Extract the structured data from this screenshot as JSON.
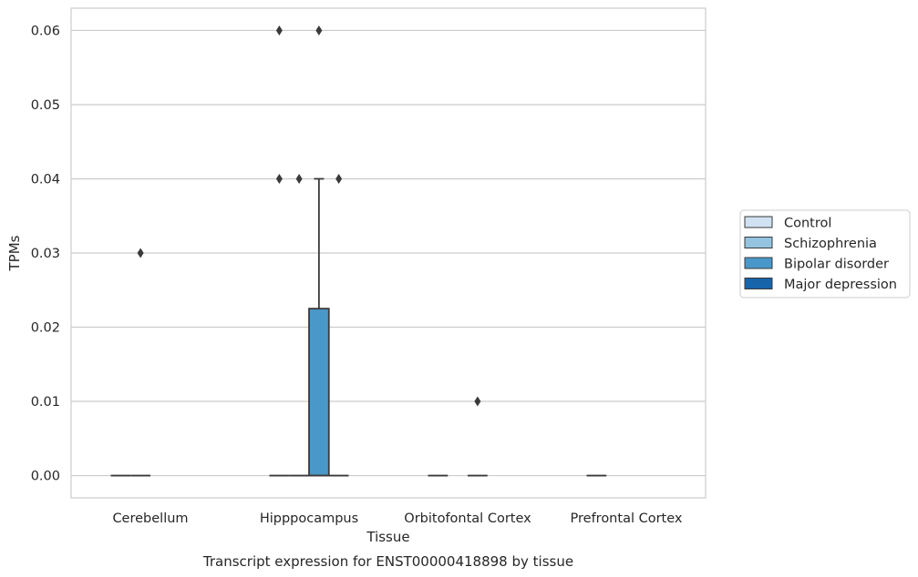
{
  "chart_data": {
    "type": "box",
    "xlabel": "Tissue",
    "ylabel": "TPMs",
    "caption": "Transcript expression for ENST00000418898 by tissue",
    "ylim": [
      -0.003,
      0.063
    ],
    "yticks": [
      "0.00",
      "0.01",
      "0.02",
      "0.03",
      "0.04",
      "0.05",
      "0.06"
    ],
    "categories": [
      "Cerebellum",
      "Hipppocampus",
      "Orbitofontal Cortex",
      "Prefrontal Cortex"
    ],
    "grid": "horizontal",
    "legend_placement": "right",
    "series": [
      {
        "name": "Control",
        "color": "#d0e1f2"
      },
      {
        "name": "Schizophrenia",
        "color": "#94c4df"
      },
      {
        "name": "Bipolar disorder",
        "color": "#4a98c9"
      },
      {
        "name": "Major depression",
        "color": "#1764ab"
      }
    ],
    "boxes": [
      {
        "category": 0,
        "series": 0,
        "q1": 0,
        "median": 0,
        "q3": 0,
        "whisker_low": 0,
        "whisker_high": 0,
        "outliers": []
      },
      {
        "category": 0,
        "series": 1,
        "q1": 0,
        "median": 0,
        "q3": 0,
        "whisker_low": 0,
        "whisker_high": 0,
        "outliers": [
          0.03
        ]
      },
      {
        "category": 1,
        "series": 0,
        "q1": 0,
        "median": 0,
        "q3": 0,
        "whisker_low": 0,
        "whisker_high": 0,
        "outliers": [
          0.04,
          0.06
        ]
      },
      {
        "category": 1,
        "series": 1,
        "q1": 0,
        "median": 0,
        "q3": 0,
        "whisker_low": 0,
        "whisker_high": 0,
        "outliers": [
          0.04
        ]
      },
      {
        "category": 1,
        "series": 2,
        "q1": 0,
        "median": 0,
        "q3": 0.0225,
        "whisker_low": 0,
        "whisker_high": 0.04,
        "outliers": [
          0.06
        ]
      },
      {
        "category": 1,
        "series": 3,
        "q1": 0,
        "median": 0,
        "q3": 0,
        "whisker_low": 0,
        "whisker_high": 0,
        "outliers": [
          0.04
        ]
      },
      {
        "category": 2,
        "series": 0,
        "q1": 0,
        "median": 0,
        "q3": 0,
        "whisker_low": 0,
        "whisker_high": 0,
        "outliers": []
      },
      {
        "category": 2,
        "series": 2,
        "q1": 0,
        "median": 0,
        "q3": 0,
        "whisker_low": 0,
        "whisker_high": 0,
        "outliers": [
          0.01
        ]
      },
      {
        "category": 3,
        "series": 0,
        "q1": 0,
        "median": 0,
        "q3": 0,
        "whisker_low": 0,
        "whisker_high": 0,
        "outliers": []
      }
    ]
  }
}
